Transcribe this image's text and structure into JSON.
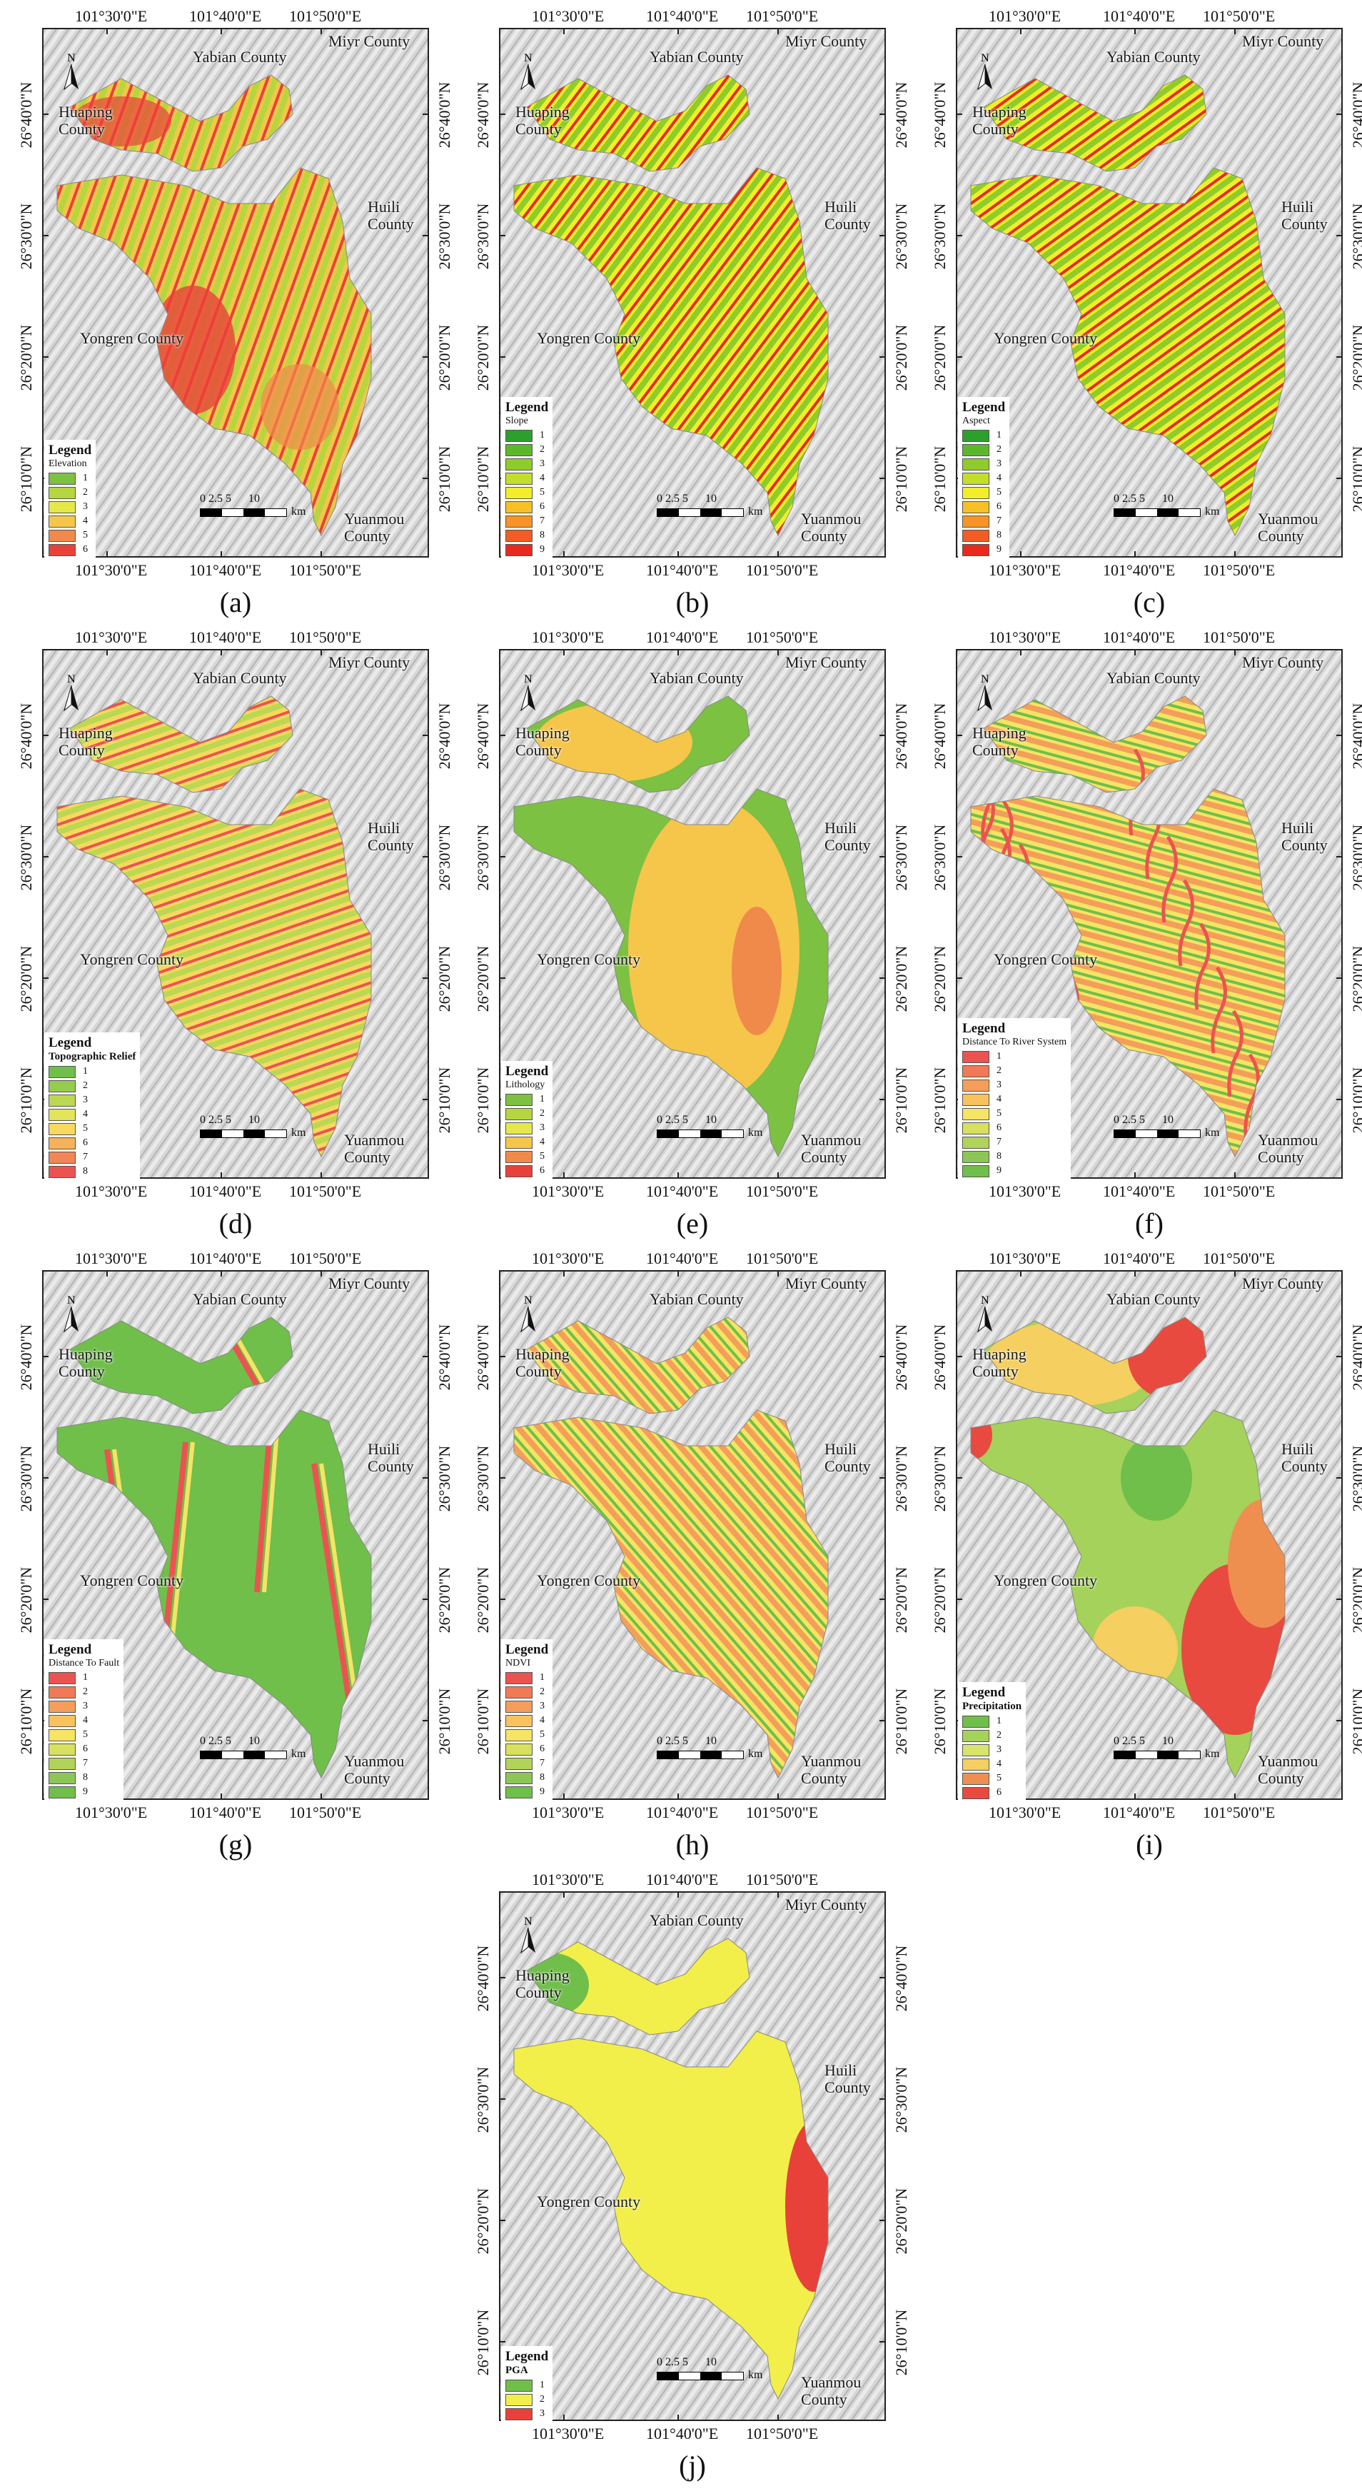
{
  "coords": {
    "top": [
      "101°30'0\"E",
      "101°40'0\"E",
      "101°50'0\"E"
    ],
    "bottom": [
      "101°30'0\"E",
      "101°40'0\"E",
      "101°50'0\"E"
    ],
    "left": [
      "26°40'0\"N",
      "26°30'0\"N",
      "26°20'0\"N",
      "26°10'0\"N"
    ],
    "right": [
      "26°40'0\"N",
      "26°30'0\"N",
      "26°20'0\"N",
      "26°10'0\"N"
    ]
  },
  "counties": {
    "yabian": "Yabian County",
    "miyi": "Miyr County",
    "huaping": [
      "Huaping",
      "County"
    ],
    "huili": [
      "Huili",
      "County"
    ],
    "yongren": "Yongren County",
    "yuanmou": [
      "Yuanmou",
      "County"
    ]
  },
  "scale_bar": {
    "numbers": "0 2.5 5      10",
    "unit": "km"
  },
  "north_arrow": {
    "letter": "N",
    "icon": "north-arrow-icon"
  },
  "legend_title": "Legend",
  "panels": [
    {
      "label": "(a)",
      "variable": "Elevation",
      "bold_var": false,
      "levels": [
        "1",
        "2",
        "3",
        "4",
        "5",
        "6"
      ],
      "colors": [
        "#7cc142",
        "#b5d63f",
        "#e6e84a",
        "#f5c64a",
        "#f08a4b",
        "#e8413a"
      ]
    },
    {
      "label": "(b)",
      "variable": "Slope",
      "bold_var": false,
      "levels": [
        "1",
        "2",
        "3",
        "4",
        "5",
        "6",
        "7",
        "8",
        "9"
      ],
      "colors": [
        "#2ca02c",
        "#5cb82a",
        "#8fcc2a",
        "#c3de2a",
        "#f2ee2a",
        "#f8c027",
        "#f79327",
        "#f25d23",
        "#e82a1e"
      ]
    },
    {
      "label": "(c)",
      "variable": "Aspect",
      "bold_var": false,
      "levels": [
        "1",
        "2",
        "3",
        "4",
        "5",
        "6",
        "7",
        "8",
        "9"
      ],
      "colors": [
        "#2ca02c",
        "#5cb82a",
        "#8fcc2a",
        "#c3de2a",
        "#f2ee2a",
        "#f8c027",
        "#f79327",
        "#f25d23",
        "#e82a1e"
      ]
    },
    {
      "label": "(d)",
      "variable": "Topographic Relief",
      "bold_var": true,
      "levels": [
        "1",
        "2",
        "3",
        "4",
        "5",
        "6",
        "7",
        "8"
      ],
      "colors": [
        "#6fbf4a",
        "#95cc4e",
        "#bcd853",
        "#e2e45a",
        "#f8d85e",
        "#f6b15a",
        "#f28656",
        "#ec5350"
      ]
    },
    {
      "label": "(e)",
      "variable": "Lithology",
      "bold_var": false,
      "levels": [
        "1",
        "2",
        "3",
        "4",
        "5",
        "6"
      ],
      "colors": [
        "#7cc142",
        "#b5d63f",
        "#e6e84a",
        "#f5c64a",
        "#f08a4b",
        "#e8413a"
      ]
    },
    {
      "label": "(f)",
      "variable": "Distance To River System",
      "bold_var": false,
      "levels": [
        "1",
        "2",
        "3",
        "4",
        "5",
        "6",
        "7",
        "8",
        "9"
      ],
      "colors": [
        "#ec5350",
        "#f07a55",
        "#f49e5a",
        "#f8c25f",
        "#f6e464",
        "#d8e05f",
        "#b2d35a",
        "#8cc656",
        "#6fbf4a"
      ]
    },
    {
      "label": "(g)",
      "variable": "Distance To Fault",
      "bold_var": false,
      "levels": [
        "1",
        "2",
        "3",
        "4",
        "5",
        "6",
        "7",
        "8",
        "9"
      ],
      "colors": [
        "#ec5350",
        "#f07a55",
        "#f49e5a",
        "#f8c25f",
        "#f6e464",
        "#d8e05f",
        "#b2d35a",
        "#8cc656",
        "#6fbf4a"
      ]
    },
    {
      "label": "(h)",
      "variable": "NDVI",
      "bold_var": false,
      "levels": [
        "1",
        "2",
        "3",
        "4",
        "5",
        "6",
        "7",
        "8",
        "9"
      ],
      "colors": [
        "#ec5350",
        "#f07a55",
        "#f49e5a",
        "#f8c25f",
        "#f6e464",
        "#d8e05f",
        "#b2d35a",
        "#8cc656",
        "#6fbf4a"
      ]
    },
    {
      "label": "(i)",
      "variable": "Precipitation",
      "bold_var": true,
      "levels": [
        "1",
        "2",
        "3",
        "4",
        "5",
        "6"
      ],
      "colors": [
        "#6fbf4a",
        "#a5d25a",
        "#d9e46a",
        "#f5cf5f",
        "#ef8f4f",
        "#e84a40"
      ]
    },
    {
      "label": "(j)",
      "variable": "PGA",
      "bold_var": true,
      "levels": [
        "1",
        "2",
        "3"
      ],
      "colors": [
        "#6fbf4a",
        "#f2ee4a",
        "#e8413a"
      ]
    }
  ]
}
